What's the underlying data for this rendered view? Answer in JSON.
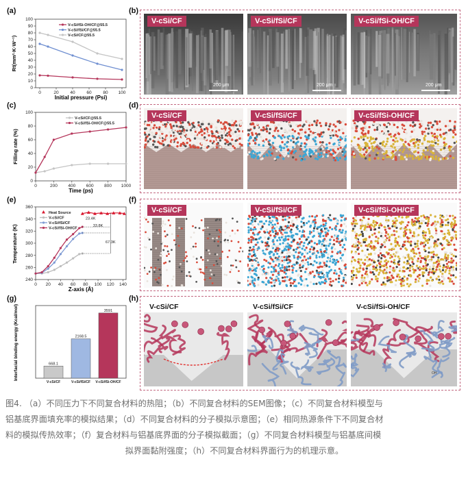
{
  "panels": {
    "a": {
      "label": "(a)"
    },
    "b": {
      "label": "(b)"
    },
    "c": {
      "label": "(c)"
    },
    "d": {
      "label": "(d)"
    },
    "e": {
      "label": "(e)"
    },
    "f": {
      "label": "(f)"
    },
    "g": {
      "label": "(g)"
    },
    "h": {
      "label": "(h)"
    }
  },
  "materials": {
    "m1": "V-cSi/CF",
    "m2": "V-cSi/fSi/CF",
    "m3": "V-cSi/fSi-OH/CF"
  },
  "sem_scale": "200 μm",
  "h_annotation": "OH",
  "colors": {
    "accent": "#b5365b",
    "frame": "#c2667f"
  },
  "chart_data": [
    {
      "id": "a",
      "type": "line",
      "xlabel": "Initial pressure (Psi)",
      "ylabel": "Rt(mm²·K·W⁻¹)",
      "xlim": [
        -5,
        105
      ],
      "ylim": [
        0,
        100
      ],
      "xticks": [
        0,
        20,
        40,
        60,
        80,
        100
      ],
      "yticks": [
        0,
        10,
        20,
        30,
        40,
        50,
        60,
        70,
        80,
        90,
        100
      ],
      "x": [
        0,
        10,
        40,
        70,
        100
      ],
      "legend": "top-right",
      "series": [
        {
          "name": "V-cSi/fSi-OH/CF@55.5",
          "color": "#b5365b",
          "values": [
            18,
            17.5,
            15,
            13,
            12
          ]
        },
        {
          "name": "V-cSi/fSi/CF@55.5",
          "color": "#6f8fd1",
          "values": [
            64,
            60,
            47,
            35,
            26
          ]
        },
        {
          "name": "V-cSi/CF@55.5",
          "color": "#c4c4c4",
          "values": [
            80,
            77,
            67,
            50,
            42
          ]
        }
      ]
    },
    {
      "id": "c",
      "type": "line",
      "xlabel": "Time (ps)",
      "ylabel": "Filling rate (%)",
      "xlim": [
        0,
        1000
      ],
      "ylim": [
        0,
        100
      ],
      "xticks": [
        0,
        200,
        400,
        600,
        800,
        1000
      ],
      "yticks": [
        0,
        20,
        40,
        60,
        80,
        100
      ],
      "x": [
        0,
        100,
        200,
        400,
        600,
        800,
        1000
      ],
      "legend": "top-right",
      "series": [
        {
          "name": "V-cSi/CF@55.5",
          "color": "#c4c4c4",
          "values": [
            12,
            14,
            18,
            23,
            25,
            25,
            25
          ]
        },
        {
          "name": "V-cSi/fSi-OH/CF@55.5",
          "color": "#b5365b",
          "values": [
            12,
            35,
            60,
            69,
            72,
            75,
            78
          ]
        }
      ]
    },
    {
      "id": "e",
      "type": "line",
      "xlabel": "Z-axis (Å)",
      "ylabel": "Temperature (K)",
      "xlim": [
        0,
        145
      ],
      "ylim": [
        240,
        360
      ],
      "xticks": [
        0,
        20,
        40,
        60,
        80,
        100,
        120,
        140
      ],
      "yticks": [
        240,
        260,
        280,
        300,
        320,
        340,
        360
      ],
      "legend": "top-left",
      "series": [
        {
          "name": "Heat Source",
          "color": "#d8182f",
          "x": [
            75,
            85,
            95,
            105,
            115,
            125,
            135,
            142
          ],
          "values": [
            349,
            351,
            349,
            350,
            349,
            350,
            350,
            349
          ]
        },
        {
          "name": "V-cSi/CF",
          "color": "#bdbdbd",
          "x": [
            0,
            10,
            20,
            30,
            40,
            50,
            60,
            70,
            75
          ],
          "values": [
            250,
            250,
            252,
            256,
            262,
            268,
            275,
            282,
            283
          ]
        },
        {
          "name": "V-cSi/fSi/CF",
          "color": "#7f9bd4",
          "x": [
            0,
            10,
            20,
            30,
            40,
            50,
            60,
            70,
            75
          ],
          "values": [
            250,
            251,
            258,
            268,
            282,
            295,
            307,
            316,
            317
          ]
        },
        {
          "name": "V-cSi/fSi-OH/CF",
          "color": "#b5365b",
          "x": [
            0,
            10,
            20,
            30,
            40,
            50,
            60,
            70,
            75
          ],
          "values": [
            250,
            252,
            262,
            276,
            292,
            306,
            315,
            325,
            327
          ]
        }
      ],
      "annotations": [
        "23.4K",
        "33.8K",
        "67.3K"
      ]
    },
    {
      "id": "g",
      "type": "bar",
      "ylabel": "Interfacial binding energy (Kcal/mol)",
      "categories": [
        "V-cSi/CF",
        "V-cSi/fSi/CF",
        "V-cSi/fSi-OH/CF"
      ],
      "values": [
        668.1,
        2168.5,
        3591
      ],
      "value_labels": [
        "668.1",
        "2168.5",
        "3591"
      ],
      "colors": [
        "#c9c9c9",
        "#9fb8e2",
        "#b5365b"
      ],
      "ylim": [
        0,
        4000
      ]
    }
  ],
  "caption": {
    "line1": "图4. （a）不同压力下不同复合材料的热阻；（b）不同复合材料的SEM图像；（c）不同复合材料模型与",
    "line2": "铝基底界面填充率的模拟结果；（d）不同复合材料的分子模拟示意图；（e）相同热源条件下不同复合材",
    "line3": "料的模拟传热效率；（f）复合材料与铝基底界面的分子模拟截面；（g）不同复合材料模型与铝基底间模",
    "line4": "拟界面黏附强度；（h）不同复合材料界面行为的机理示意。"
  }
}
